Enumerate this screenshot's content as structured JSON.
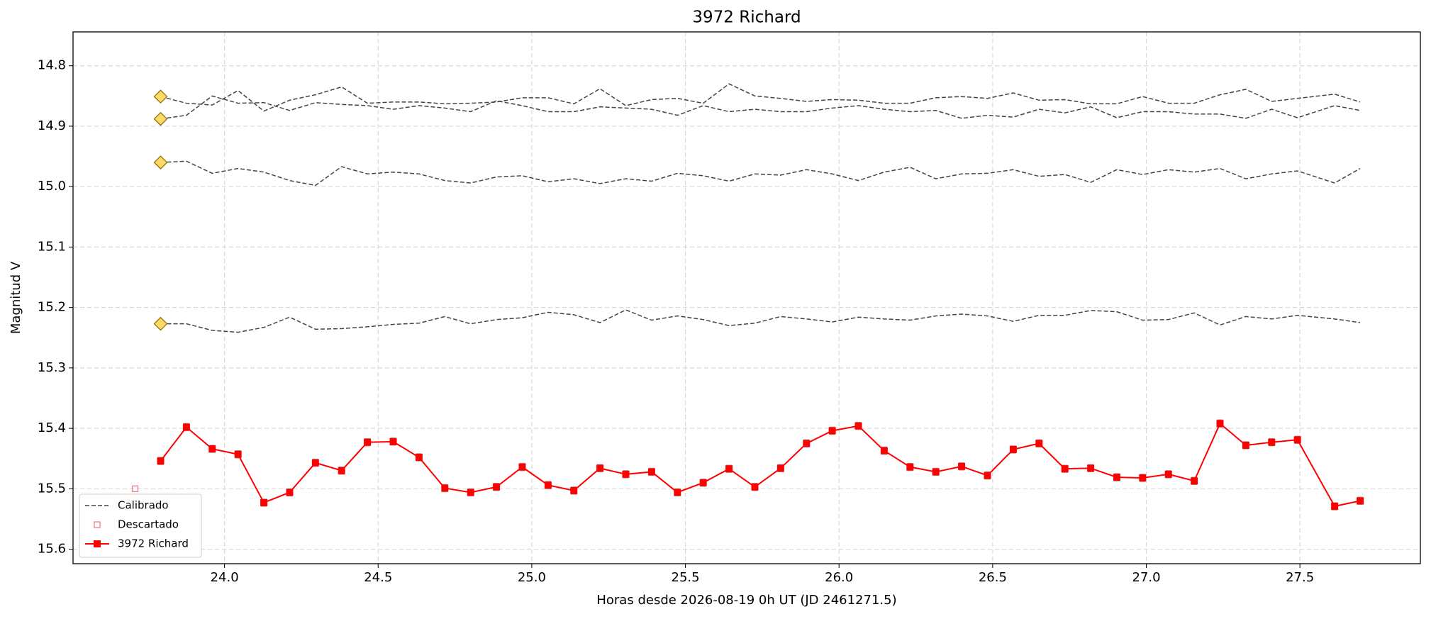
{
  "chart_data": {
    "type": "line",
    "title": "3972 Richard",
    "xlabel": "Horas desde 2026-08-19 0h UT (JD 2461271.5)",
    "ylabel": "Magnitud V",
    "xlim": [
      23.507,
      27.892
    ],
    "ylim": [
      15.624,
      14.744
    ],
    "xticks": [
      {
        "value": 24,
        "label": "24.0"
      },
      24.5,
      {
        "value": 25,
        "label": "25.0"
      },
      25.5,
      {
        "value": 26,
        "label": "26.0"
      },
      26.5,
      {
        "value": 27,
        "label": "27.0"
      },
      27.5
    ],
    "yticks": [
      14.8,
      14.9,
      {
        "value": 15,
        "label": "15.0"
      },
      15.1,
      15.2,
      15.3,
      15.4,
      15.5,
      15.6
    ],
    "grid": true,
    "legend_position": "lower-left",
    "x": [
      23.792,
      23.876,
      23.96,
      24.044,
      24.128,
      24.212,
      24.296,
      24.381,
      24.465,
      24.549,
      24.633,
      24.717,
      24.801,
      24.885,
      24.969,
      25.053,
      25.137,
      25.222,
      25.306,
      25.39,
      25.474,
      25.558,
      25.642,
      25.726,
      25.81,
      25.894,
      25.978,
      26.063,
      26.147,
      26.231,
      26.315,
      26.399,
      26.483,
      26.567,
      26.651,
      26.735,
      26.819,
      26.904,
      26.988,
      27.072,
      27.156,
      27.24,
      27.324,
      27.408,
      27.492,
      27.613,
      27.696
    ],
    "calibrated_label": "Calibrado",
    "calibrated_color": "#444444",
    "start_marker_color": "#ffd966",
    "calibrated_series": [
      {
        "values": [
          14.851,
          14.862,
          14.865,
          14.841,
          14.875,
          14.857,
          14.848,
          14.835,
          14.862,
          14.86,
          14.86,
          14.863,
          14.862,
          14.86,
          14.853,
          14.853,
          14.863,
          14.838,
          14.866,
          14.856,
          14.854,
          14.862,
          14.83,
          14.85,
          14.854,
          14.859,
          14.856,
          14.857,
          14.862,
          14.862,
          14.853,
          14.851,
          14.854,
          14.845,
          14.857,
          14.856,
          14.863,
          14.863,
          14.851,
          14.862,
          14.862,
          14.848,
          14.839,
          14.859,
          14.854,
          14.847,
          14.86
        ]
      },
      {
        "values": [
          14.888,
          14.882,
          14.85,
          14.862,
          14.861,
          14.874,
          14.861,
          14.864,
          14.866,
          14.872,
          14.866,
          14.87,
          14.876,
          14.858,
          14.866,
          14.876,
          14.876,
          14.868,
          14.87,
          14.872,
          14.882,
          14.866,
          14.876,
          14.872,
          14.876,
          14.876,
          14.87,
          14.866,
          14.872,
          14.876,
          14.874,
          14.887,
          14.882,
          14.885,
          14.872,
          14.878,
          14.868,
          14.886,
          14.876,
          14.876,
          14.88,
          14.88,
          14.887,
          14.872,
          14.886,
          14.866,
          14.874
        ]
      },
      {
        "values": [
          14.96,
          14.958,
          14.978,
          14.97,
          14.976,
          14.99,
          14.998,
          14.967,
          14.979,
          14.976,
          14.979,
          14.99,
          14.994,
          14.984,
          14.982,
          14.992,
          14.987,
          14.995,
          14.987,
          14.991,
          14.978,
          14.982,
          14.991,
          14.979,
          14.981,
          14.972,
          14.979,
          14.99,
          14.976,
          14.968,
          14.987,
          14.979,
          14.978,
          14.972,
          14.983,
          14.98,
          14.993,
          14.972,
          14.98,
          14.972,
          14.976,
          14.97,
          14.987,
          14.979,
          14.974,
          14.994,
          14.97
        ]
      },
      {
        "values": [
          15.227,
          15.227,
          15.238,
          15.241,
          15.233,
          15.216,
          15.236,
          15.235,
          15.232,
          15.228,
          15.226,
          15.215,
          15.227,
          15.22,
          15.217,
          15.208,
          15.212,
          15.225,
          15.204,
          15.221,
          15.214,
          15.22,
          15.23,
          15.226,
          15.215,
          15.219,
          15.224,
          15.216,
          15.219,
          15.221,
          15.214,
          15.211,
          15.214,
          15.223,
          15.213,
          15.213,
          15.205,
          15.207,
          15.221,
          15.22,
          15.209,
          15.229,
          15.215,
          15.219,
          15.213,
          15.219,
          15.225
        ]
      }
    ],
    "discarded": {
      "name": "Descartado",
      "color": "#f08080",
      "x": [
        23.709
      ],
      "values": [
        15.5
      ]
    },
    "series": [
      {
        "name": "3972 Richard",
        "color": "#ff0000",
        "values": [
          15.454,
          15.398,
          15.434,
          15.443,
          15.523,
          15.506,
          15.457,
          15.47,
          15.423,
          15.422,
          15.448,
          15.499,
          15.506,
          15.497,
          15.464,
          15.494,
          15.503,
          15.466,
          15.476,
          15.472,
          15.506,
          15.49,
          15.467,
          15.497,
          15.466,
          15.425,
          15.404,
          15.396,
          15.437,
          15.464,
          15.472,
          15.463,
          15.478,
          15.435,
          15.425,
          15.467,
          15.466,
          15.481,
          15.482,
          15.476,
          15.487,
          15.392,
          15.428,
          15.423,
          15.419,
          15.529,
          15.52
        ],
        "errors": [
          0.006,
          0.006,
          0.006,
          0.006,
          0.006,
          0.006,
          0.006,
          0.006,
          0.006,
          0.006,
          0.006,
          0.006,
          0.006,
          0.006,
          0.006,
          0.006,
          0.006,
          0.006,
          0.006,
          0.006,
          0.006,
          0.006,
          0.006,
          0.006,
          0.006,
          0.006,
          0.006,
          0.006,
          0.006,
          0.006,
          0.006,
          0.006,
          0.006,
          0.006,
          0.006,
          0.006,
          0.006,
          0.006,
          0.006,
          0.006,
          0.006,
          0.006,
          0.006,
          0.006,
          0.006,
          0.006,
          0.006
        ]
      }
    ]
  }
}
